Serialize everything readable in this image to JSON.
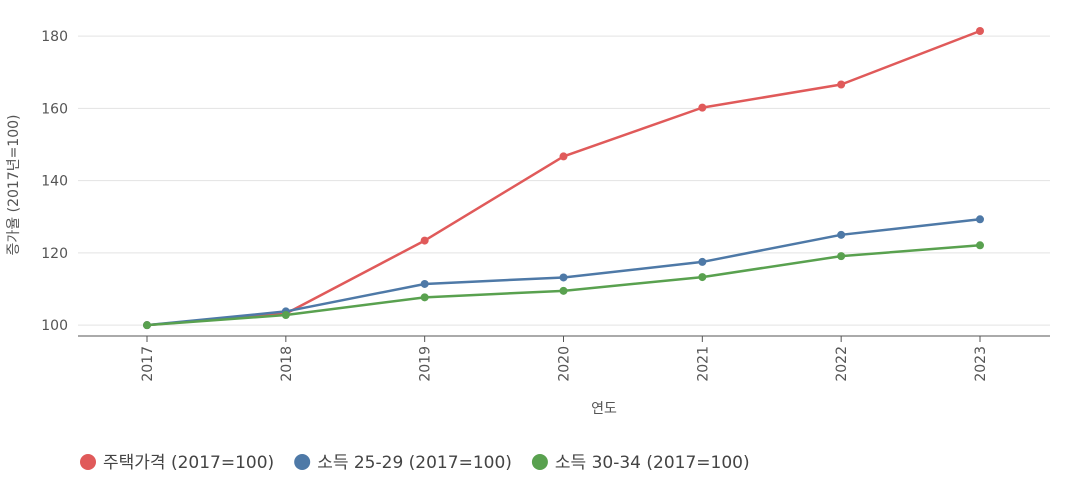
{
  "chart_data": {
    "type": "line",
    "title": "",
    "xlabel": "연도",
    "ylabel": "증가율 (2017년=100)",
    "categories": [
      "2017",
      "2018",
      "2019",
      "2020",
      "2021",
      "2022",
      "2023"
    ],
    "ylim": [
      97,
      185
    ],
    "yticks": [
      100,
      120,
      140,
      160,
      180
    ],
    "grid": true,
    "legend_position": "bottom-left",
    "series": [
      {
        "name": "주택가격 (2017=100)",
        "color": "#e05a5a",
        "values": [
          100,
          103.2,
          123.4,
          146.7,
          160.2,
          166.6,
          181.4
        ]
      },
      {
        "name": "소득 25-29 (2017=100)",
        "color": "#4e79a7",
        "values": [
          100,
          103.8,
          111.4,
          113.2,
          117.5,
          125.0,
          129.3
        ]
      },
      {
        "name": "소득 30-34 (2017=100)",
        "color": "#59a14f",
        "values": [
          100,
          102.8,
          107.7,
          109.5,
          113.3,
          119.1,
          122.1
        ]
      }
    ]
  }
}
